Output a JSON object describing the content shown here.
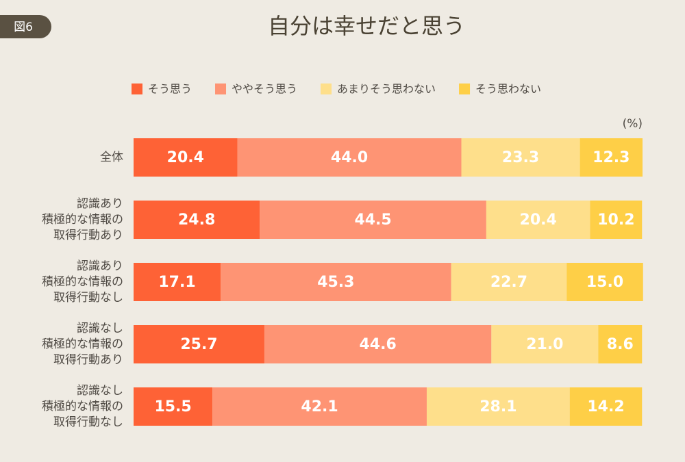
{
  "badge": "図6",
  "chart_data": {
    "type": "stacked-bar-horizontal",
    "title": "自分は幸せだと思う",
    "unit_label": "(%)",
    "categories": [
      [
        "全体"
      ],
      [
        "認識あり",
        "積極的な情報の",
        "取得行動あり"
      ],
      [
        "認識あり",
        "積極的な情報の",
        "取得行動なし"
      ],
      [
        "認識なし",
        "積極的な情報の",
        "取得行動あり"
      ],
      [
        "認識なし",
        "積極的な情報の",
        "取得行動なし"
      ]
    ],
    "xlim": [
      0,
      100
    ],
    "series": [
      {
        "name": "そう思う",
        "color": "#fe6236",
        "values": [
          20.4,
          24.8,
          17.1,
          25.7,
          15.5
        ],
        "value_labels": [
          "20.4",
          "24.8",
          "17.1",
          "25.7",
          "15.5"
        ]
      },
      {
        "name": "ややそう思う",
        "color": "#fe9474",
        "values": [
          44,
          44.5,
          45.3,
          44.6,
          42.1
        ],
        "value_labels": [
          "44.0",
          "44.5",
          "45.3",
          "44.6",
          "42.1"
        ]
      },
      {
        "name": "あまりそう思わない",
        "color": "#fedf8b",
        "values": [
          23.3,
          20.4,
          22.7,
          21,
          28.1
        ],
        "value_labels": [
          "23.3",
          "20.4",
          "22.7",
          "21.0",
          "28.1"
        ]
      },
      {
        "name": "そう思わない",
        "color": "#fecf47",
        "values": [
          12.3,
          10.2,
          15,
          8.6,
          14.2
        ],
        "value_labels": [
          "12.3",
          "10.2",
          "15.0",
          "8.6",
          "14.2"
        ]
      }
    ]
  }
}
